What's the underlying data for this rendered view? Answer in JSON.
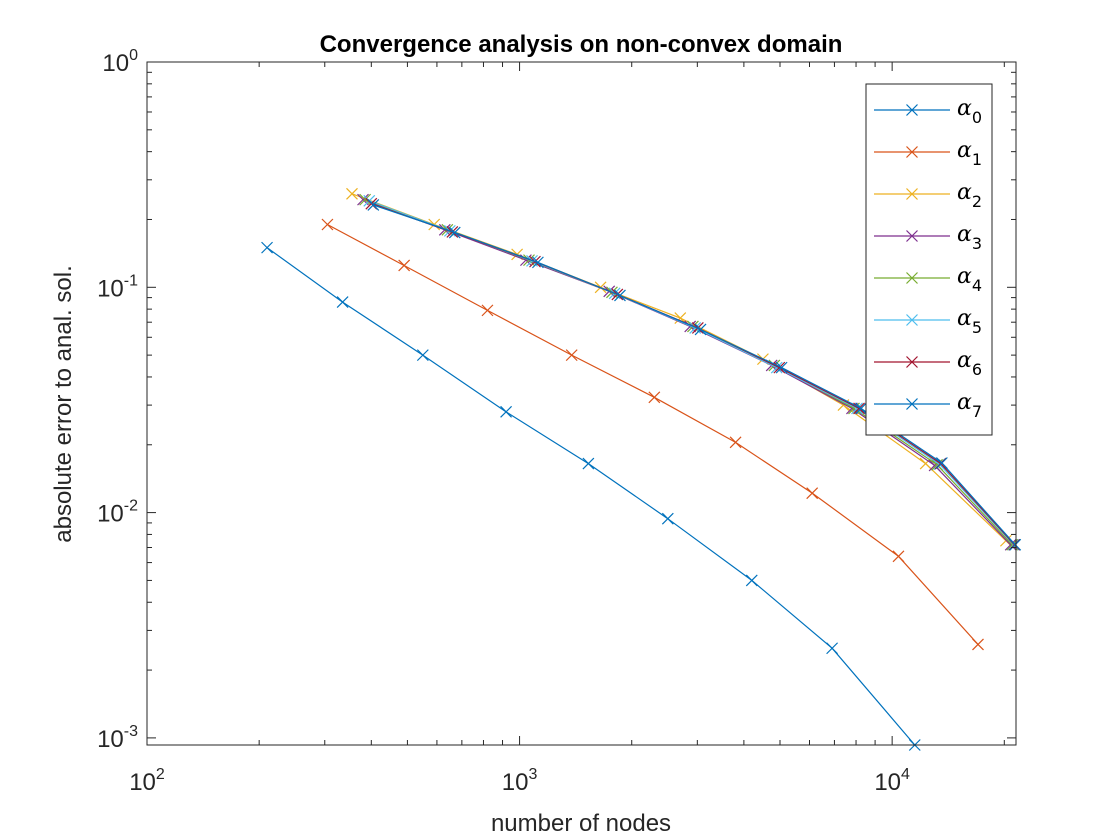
{
  "chart_data": {
    "type": "line",
    "title": "Convergence analysis on non-convex domain",
    "xlabel": "number of nodes",
    "ylabel": "absolute error to anal. sol.",
    "xscale": "log",
    "yscale": "log",
    "xlim": [
      100,
      21500
    ],
    "ylim": [
      0.00093,
      1
    ],
    "x_ticks": [
      {
        "value": 100,
        "base": "10",
        "exp": "2"
      },
      {
        "value": 1000,
        "base": "10",
        "exp": "3"
      },
      {
        "value": 10000,
        "base": "10",
        "exp": "4"
      }
    ],
    "y_ticks": [
      {
        "value": 0.001,
        "base": "10",
        "exp": "-3"
      },
      {
        "value": 0.01,
        "base": "10",
        "exp": "-2"
      },
      {
        "value": 0.1,
        "base": "10",
        "exp": "-1"
      },
      {
        "value": 1,
        "base": "10",
        "exp": "0"
      }
    ],
    "grid": false,
    "box": true,
    "marker": "x",
    "legend_position": "top-right",
    "series": [
      {
        "name": "α",
        "sub": "0",
        "color": "#0072BD",
        "x": [
          210,
          335,
          550,
          920,
          1530,
          2500,
          4200,
          6900,
          11500
        ],
        "y": [
          0.15,
          0.086,
          0.05,
          0.028,
          0.0165,
          0.0094,
          0.005,
          0.0025,
          0.00093
        ]
      },
      {
        "name": "α",
        "sub": "1",
        "color": "#D95319",
        "x": [
          305,
          490,
          820,
          1380,
          2300,
          3800,
          6100,
          10400,
          17000
        ],
        "y": [
          0.19,
          0.125,
          0.079,
          0.05,
          0.0325,
          0.0205,
          0.0122,
          0.0064,
          0.0026
        ]
      },
      {
        "name": "α",
        "sub": "2",
        "color": "#EDB120",
        "x": [
          355,
          590,
          985,
          1650,
          2700,
          4500,
          7400,
          12300,
          20200
        ],
        "y": [
          0.26,
          0.19,
          0.14,
          0.1,
          0.073,
          0.048,
          0.03,
          0.0165,
          0.0075
        ]
      },
      {
        "name": "α",
        "sub": "3",
        "color": "#7E2F8E",
        "x": [
          380,
          630,
          1040,
          1740,
          2870,
          4750,
          7800,
          13000,
          20800
        ],
        "y": [
          0.245,
          0.18,
          0.132,
          0.096,
          0.067,
          0.045,
          0.029,
          0.0162,
          0.0072
        ]
      },
      {
        "name": "α",
        "sub": "4",
        "color": "#77AC30",
        "x": [
          385,
          640,
          1060,
          1770,
          2920,
          4830,
          7900,
          13200,
          21000
        ],
        "y": [
          0.245,
          0.18,
          0.132,
          0.095,
          0.067,
          0.045,
          0.029,
          0.0163,
          0.0072
        ]
      },
      {
        "name": "α",
        "sub": "5",
        "color": "#4DBEEE",
        "x": [
          395,
          650,
          1080,
          1800,
          2960,
          4900,
          8050,
          13400,
          21200
        ],
        "y": [
          0.242,
          0.178,
          0.131,
          0.094,
          0.066,
          0.044,
          0.029,
          0.0164,
          0.0072
        ]
      },
      {
        "name": "α",
        "sub": "6",
        "color": "#A2142F",
        "x": [
          400,
          660,
          1100,
          1830,
          3010,
          4980,
          8150,
          13500,
          21300
        ],
        "y": [
          0.235,
          0.176,
          0.13,
          0.093,
          0.066,
          0.044,
          0.029,
          0.0165,
          0.0072
        ]
      },
      {
        "name": "α",
        "sub": "7",
        "color": "#0072BD",
        "x": [
          405,
          670,
          1120,
          1860,
          3060,
          5050,
          8250,
          13600,
          21400
        ],
        "y": [
          0.232,
          0.175,
          0.129,
          0.092,
          0.065,
          0.044,
          0.029,
          0.0166,
          0.0072
        ]
      }
    ]
  }
}
